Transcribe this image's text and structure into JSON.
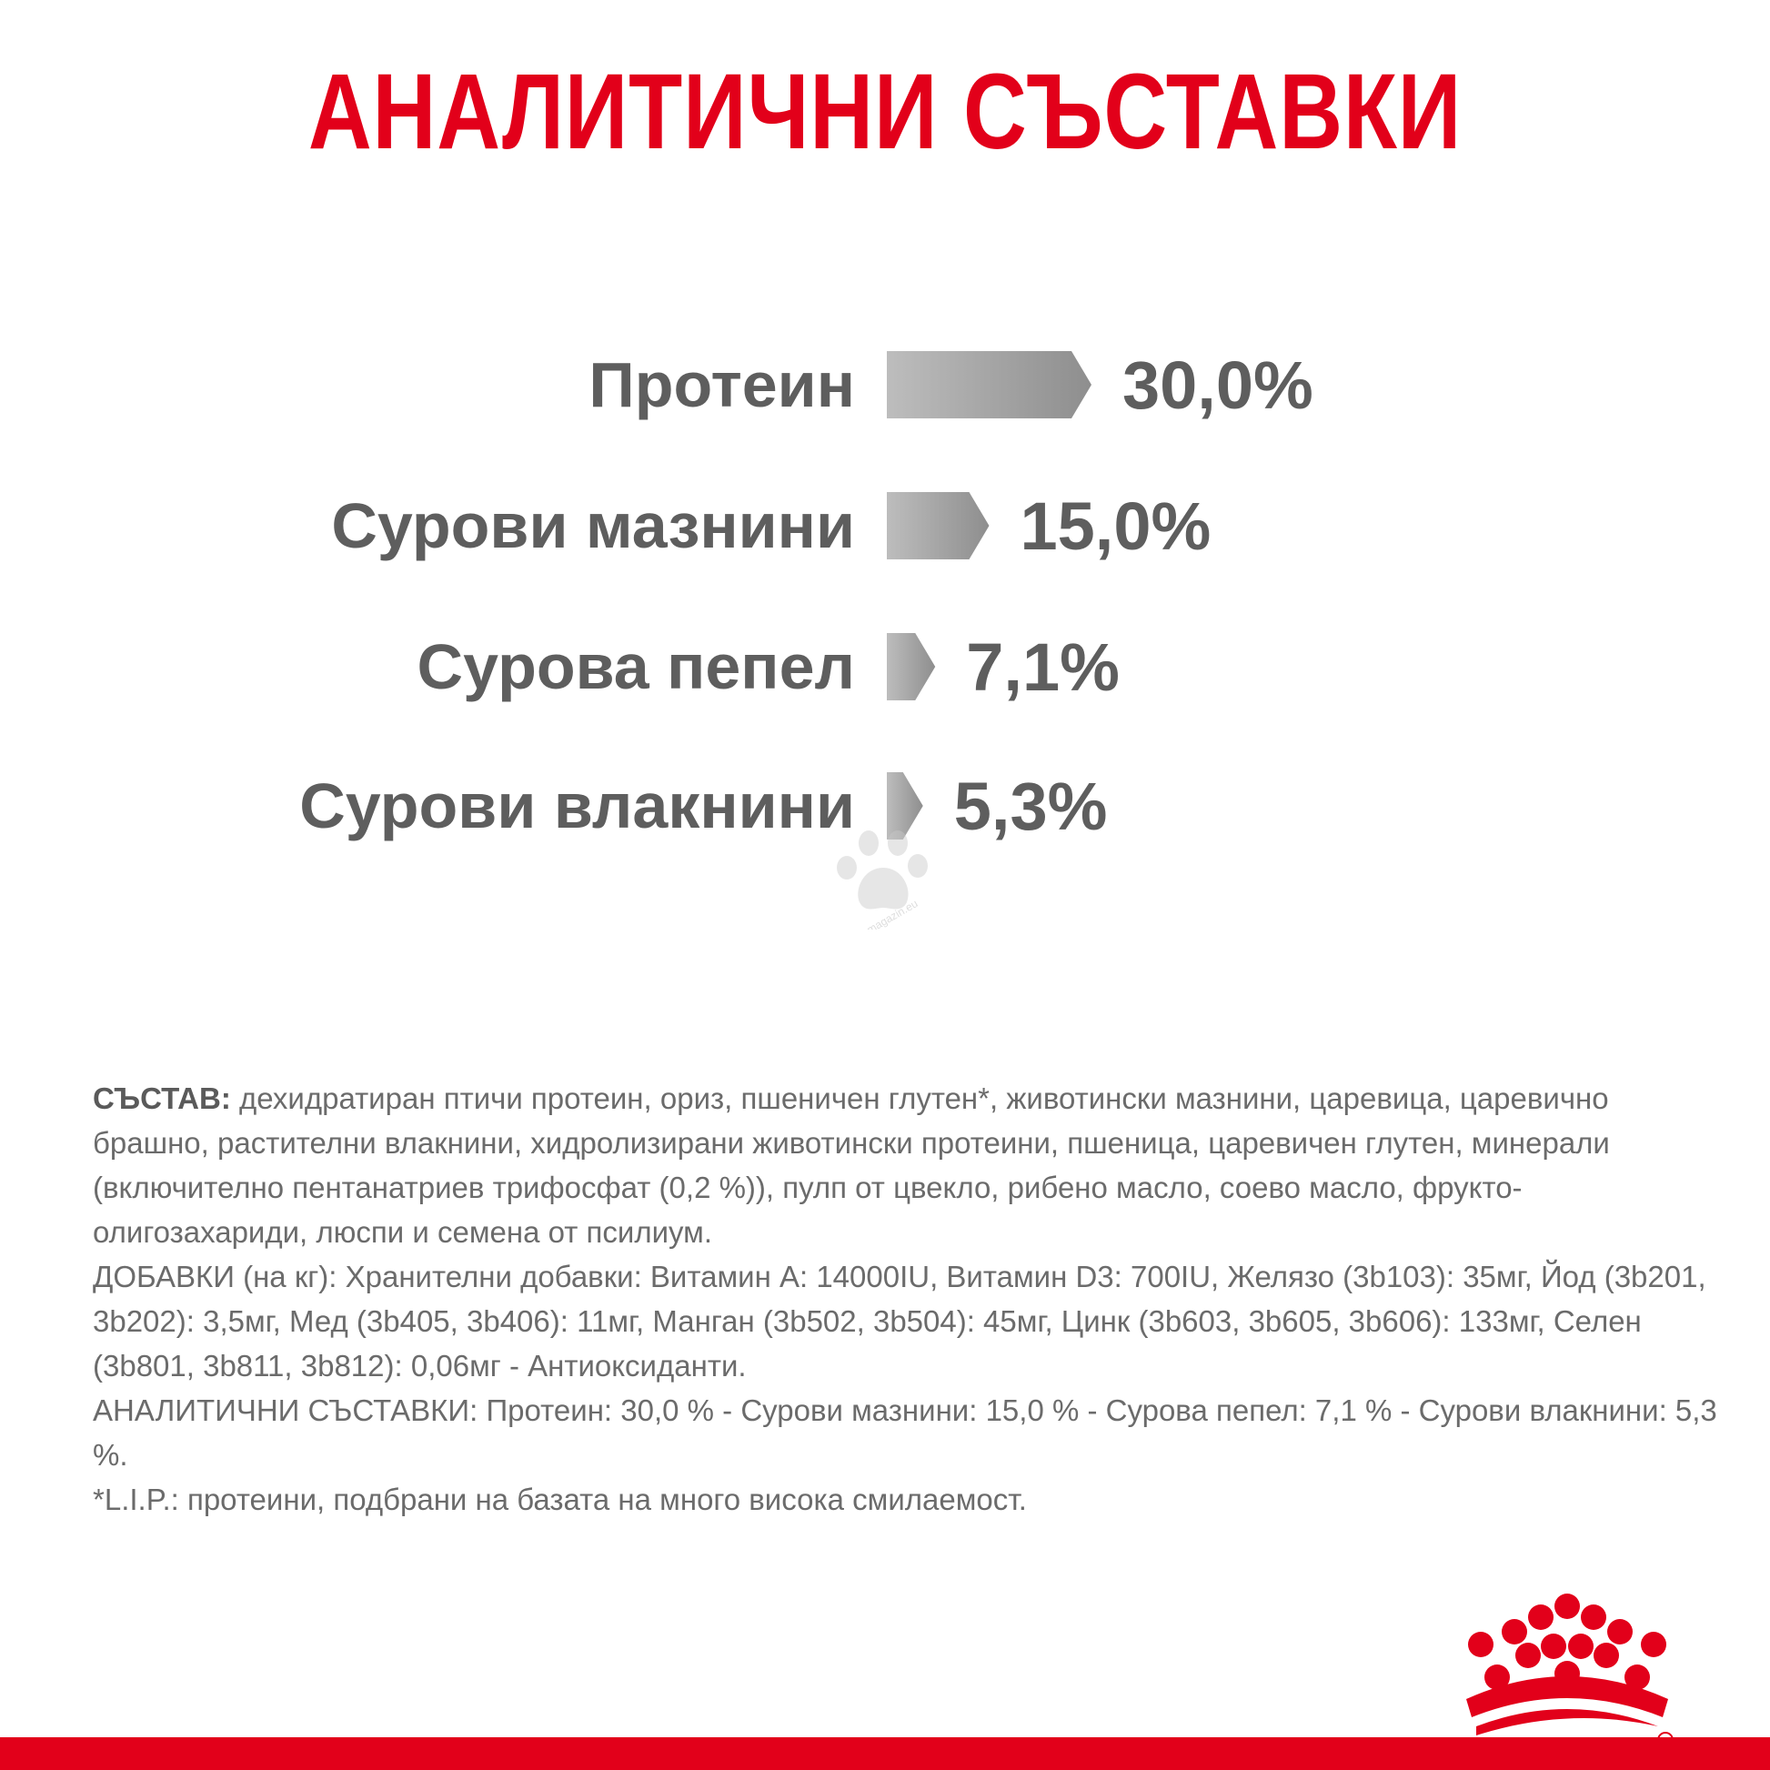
{
  "page": {
    "title": "АНАЛИТИЧНИ СЪСТАВКИ",
    "accent_color": "#E2001A",
    "text_color": "#5e5e5e"
  },
  "chart_data": {
    "type": "bar",
    "orientation": "horizontal",
    "categories": [
      "Протеин",
      "Сурови мазнини",
      "Сурова пепел",
      "Сурови влакнини"
    ],
    "values": [
      30.0,
      15.0,
      7.1,
      5.3
    ],
    "value_labels": [
      "30,0%",
      "15,0%",
      "7,1%",
      "5,3%"
    ],
    "unit": "%",
    "bar_style": "arrow",
    "bar_gradient": [
      "#bdbdbd",
      "#8e8e8e"
    ]
  },
  "composition": {
    "lead": "СЪСТАВ:",
    "ingredients": " дехидратиран птичи протеин, ориз, пшеничен глутен*, животински мазнини, царевица, царевично брашно, растителни влакнини, хидролизирани животински протеини, пшеница, царевичен глутен, минерали (включително пентанатриев трифосфат (0,2 %)), пулп от цвекло, рибено масло, соево масло, фрукто-олигозахариди, люспи и семена от псилиум.",
    "additives": "ДОБАВКИ (на кг): Хранителни добавки: Витамин A: 14000IU, Витамин D3: 700IU, Желязо (3b103): 35мг, Йод (3b201, 3b202): 3,5мг, Мед (3b405, 3b406): 11мг, Манган (3b502, 3b504): 45мг, Цинк (3b603, 3b605, 3b606): 133мг, Селен (3b801, 3b811, 3b812): 0,06мг - Антиоксиданти.",
    "analytical": "АНАЛИТИЧНИ СЪСТАВКИ: Протеин: 30,0 % - Сурови мазнини: 15,0 % - Сурова пепел: 7,1 % - Сурови влакнини: 5,3 %.",
    "footnote": "*L.I.P.: протеини, подбрани на базата на много висока смилаемост."
  },
  "watermark": {
    "text": "zoomagazin.eu",
    "icon": "paw-icon"
  },
  "logo": {
    "icon": "crown-logo-icon",
    "color": "#E2001A"
  }
}
